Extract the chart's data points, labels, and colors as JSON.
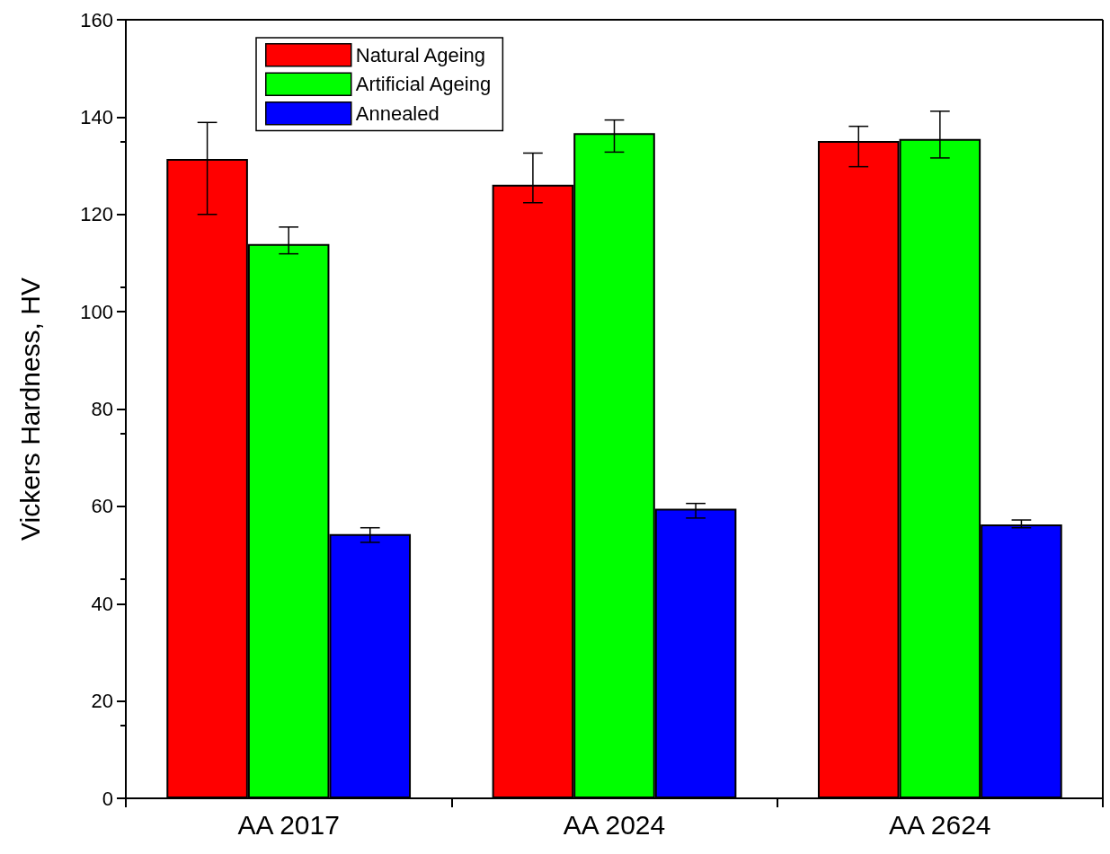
{
  "chart_data": {
    "type": "bar",
    "ylabel": "Vickers Hardness, HV",
    "categories": [
      "AA 2017",
      "AA 2024",
      "AA 2624"
    ],
    "series": [
      {
        "name": "Natural Ageing",
        "color": "#ff0000",
        "values": [
          131.4,
          126.1,
          135.1
        ],
        "errors": [
          [
            120,
            138.9
          ],
          [
            122.4,
            132.6
          ],
          [
            129.8,
            138.1
          ]
        ]
      },
      {
        "name": "Artificial Ageing",
        "color": "#00ff00",
        "values": [
          113.9,
          136.7,
          135.5
        ],
        "errors": [
          [
            111.9,
            117.4
          ],
          [
            132.8,
            139.4
          ],
          [
            131.6,
            141.2
          ]
        ]
      },
      {
        "name": "Annealed",
        "color": "#0000ff",
        "values": [
          54.3,
          59.5,
          56.3
        ],
        "errors": [
          [
            52.6,
            55.6
          ],
          [
            57.6,
            60.6
          ],
          [
            55.6,
            57.2
          ]
        ]
      }
    ],
    "ylim": [
      0,
      160
    ],
    "yticks": [
      0,
      20,
      40,
      60,
      80,
      100,
      120,
      140,
      160
    ],
    "grid": false,
    "legend": "top left"
  }
}
